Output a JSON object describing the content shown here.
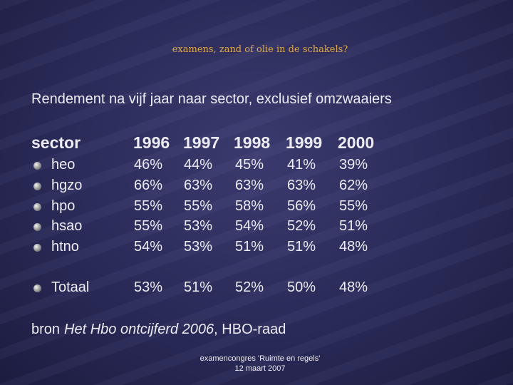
{
  "header": {
    "title": "examens, zand of olie in de schakels?",
    "subtitle": "Rendement na vijf jaar naar sector, exclusief omzwaaiers"
  },
  "table": {
    "columns": [
      "sector",
      "1996",
      "1997",
      "1998",
      "1999",
      "2000"
    ],
    "rows": [
      [
        "heo",
        "46%",
        "44%",
        "45%",
        "41%",
        "39%"
      ],
      [
        "hgzo",
        "66%",
        "63%",
        "63%",
        "63%",
        "62%"
      ],
      [
        "hpo",
        "55%",
        "55%",
        "58%",
        "56%",
        "55%"
      ],
      [
        "hsao",
        "55%",
        "53%",
        "54%",
        "52%",
        "51%"
      ],
      [
        "htno",
        "54%",
        "53%",
        "51%",
        "51%",
        "48%"
      ]
    ],
    "total": [
      "Totaal",
      "53%",
      "51%",
      "52%",
      "50%",
      "48%"
    ]
  },
  "source": {
    "prefix": "bron",
    "title": "Het Hbo ontcijferd 2006",
    "suffix": ", HBO-raad"
  },
  "footer": {
    "line1": "examencongres 'Ruimte en regels'",
    "line2": "12 maart 2007"
  }
}
